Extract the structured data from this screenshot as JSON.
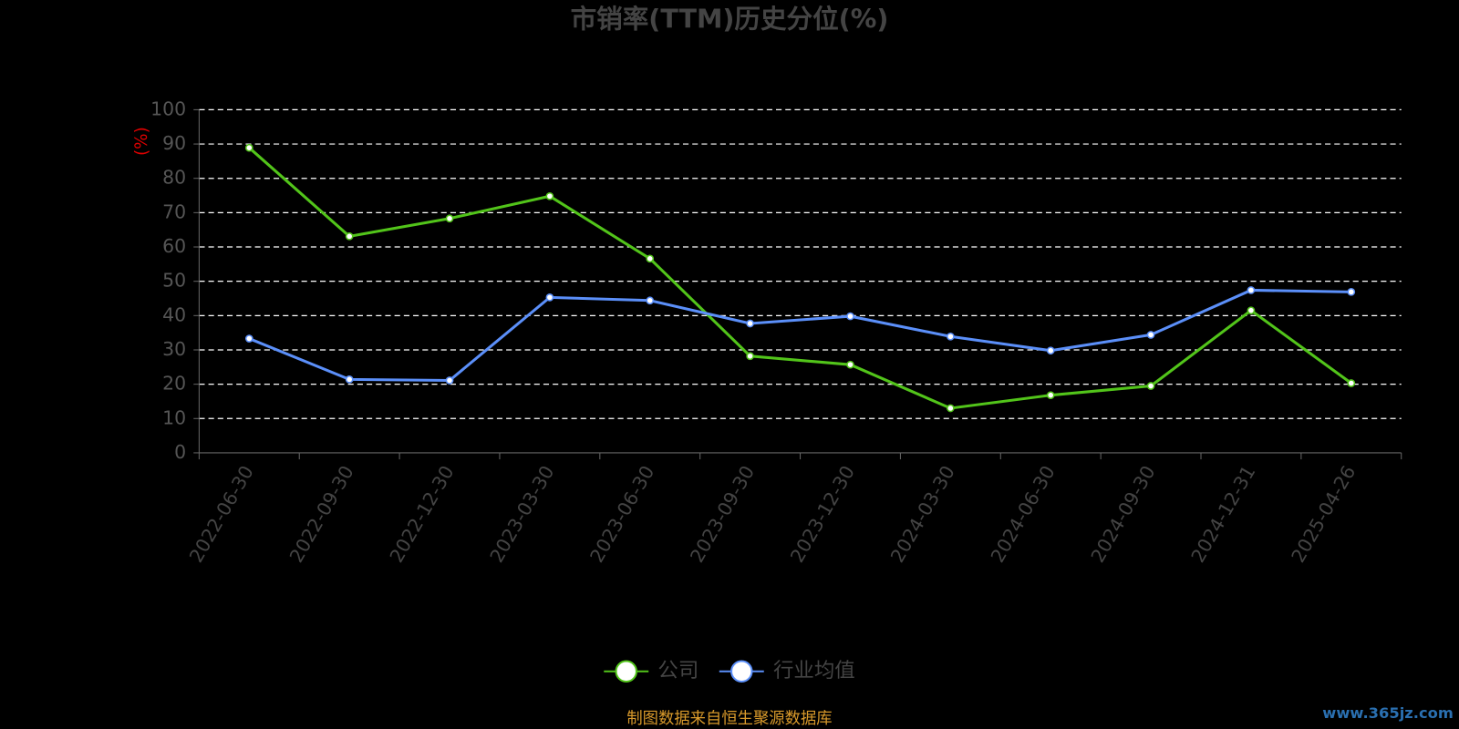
{
  "chart_data": {
    "type": "line",
    "title": "市销率(TTM)历史分位(%)",
    "y_label": "(%)",
    "categories": [
      "2022-06-30",
      "2022-09-30",
      "2022-12-30",
      "2023-03-30",
      "2023-06-30",
      "2023-09-30",
      "2023-12-30",
      "2024-03-30",
      "2024-06-30",
      "2024-09-30",
      "2024-12-31",
      "2025-04-26"
    ],
    "series": [
      {
        "name": "公司",
        "color": "#52c41a",
        "values": [
          88.9,
          63.1,
          68.3,
          74.8,
          56.6,
          28.2,
          25.7,
          13.0,
          16.8,
          19.5,
          41.5,
          20.3
        ]
      },
      {
        "name": "行业均值",
        "color": "#5b8ff9",
        "values": [
          33.3,
          21.4,
          21.1,
          45.3,
          44.4,
          37.7,
          39.8,
          33.9,
          29.8,
          34.4,
          47.4,
          46.9
        ]
      }
    ],
    "ylim": [
      0,
      100
    ],
    "yticks": [
      0,
      10,
      20,
      30,
      40,
      50,
      60,
      70,
      80,
      90,
      100
    ],
    "grid": true,
    "legend": "bottom",
    "source": "制图数据来自恒生聚源数据库",
    "watermark": "www.365jz.com"
  }
}
